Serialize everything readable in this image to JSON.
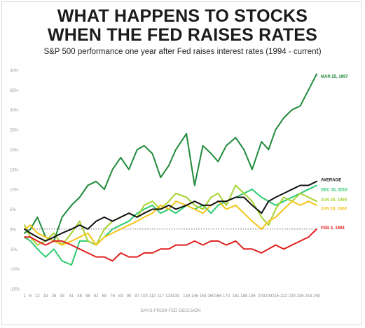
{
  "title_line1": "WHAT HAPPENS TO STOCKS",
  "title_line2": "WHEN THE FED RAISES RATES",
  "subtitle": "S&P 500 performance one year after Fed raises interest rates (1994 - current)",
  "chart_data": {
    "type": "line",
    "title": "WHAT HAPPENS TO STOCKS WHEN THE FED RAISES RATES",
    "subtitle": "S&P 500 performance one year after Fed raises interest rates (1994 - current)",
    "xlabel": "DAYS FROM FED DECISION",
    "ylabel": "",
    "xlim": [
      1,
      250
    ],
    "ylim": [
      -15,
      40
    ],
    "x_ticks": [
      1,
      6,
      12,
      19,
      26,
      33,
      41,
      48,
      55,
      62,
      69,
      76,
      83,
      90,
      97,
      103,
      110,
      117,
      124,
      130,
      139,
      146,
      153,
      160,
      166,
      173,
      181,
      188,
      195,
      203,
      209,
      215,
      222,
      229,
      236,
      243,
      250
    ],
    "y_ticks": [
      -15,
      -10,
      -5,
      0,
      5,
      10,
      15,
      20,
      25,
      30,
      35,
      40
    ],
    "y_tick_labels": [
      "-15%",
      "-10%",
      "-5%",
      "0%",
      "5%",
      "10%",
      "15%",
      "20%",
      "25%",
      "30%",
      "35%",
      "40%"
    ],
    "grid": false,
    "reference_line": 0,
    "series": [
      {
        "name": "MAR 25, 1997",
        "color": "#1f8a3a",
        "width": 2,
        "x": [
          1,
          6,
          12,
          19,
          26,
          33,
          41,
          48,
          55,
          62,
          69,
          76,
          83,
          90,
          97,
          103,
          110,
          117,
          124,
          130,
          139,
          146,
          153,
          160,
          166,
          173,
          181,
          188,
          195,
          203,
          209,
          215,
          222,
          229,
          236,
          243,
          250
        ],
        "y": [
          -1,
          0,
          3,
          -2,
          -3,
          3,
          6,
          8,
          11,
          12,
          10,
          15,
          18,
          15,
          20,
          21,
          19,
          13,
          16,
          20,
          24,
          11,
          21,
          19,
          17,
          21,
          23,
          20,
          15,
          22,
          20,
          25,
          28,
          30,
          31,
          35,
          39
        ]
      },
      {
        "name": "AVERAGE",
        "color": "#111111",
        "width": 2,
        "x": [
          1,
          6,
          12,
          19,
          26,
          33,
          41,
          48,
          55,
          62,
          69,
          76,
          83,
          90,
          97,
          103,
          110,
          117,
          124,
          130,
          139,
          146,
          153,
          160,
          166,
          173,
          181,
          188,
          195,
          203,
          209,
          215,
          222,
          229,
          236,
          243,
          250
        ],
        "y": [
          0,
          -1,
          -2,
          -3,
          -2,
          -1,
          0,
          1,
          0,
          2,
          3,
          2,
          3,
          4,
          3,
          4,
          5,
          5,
          6,
          5,
          6,
          7,
          6,
          6,
          7,
          7,
          8,
          8,
          6,
          4,
          7,
          8,
          9,
          10,
          11,
          11,
          12
        ]
      },
      {
        "name": "DEC 16, 2015",
        "color": "#2ecc71",
        "width": 2,
        "x": [
          1,
          6,
          12,
          19,
          26,
          33,
          41,
          48,
          55,
          62,
          69,
          76,
          83,
          90,
          97,
          103,
          110,
          117,
          124,
          130,
          139,
          146,
          153,
          160,
          166,
          173,
          181,
          188,
          195,
          203,
          209,
          215,
          222,
          229,
          236,
          243,
          250
        ],
        "y": [
          -2,
          -3,
          -5,
          -7,
          -5,
          -8,
          -9,
          -3,
          -3,
          -4,
          -2,
          0,
          1,
          2,
          4,
          5,
          6,
          4,
          5,
          4,
          6,
          5,
          6,
          4,
          6,
          7,
          8,
          9,
          10,
          8,
          7,
          6,
          7,
          8,
          9,
          10,
          11
        ]
      },
      {
        "name": "JUN 30, 1999",
        "color": "#a6d332",
        "width": 2,
        "x": [
          1,
          6,
          12,
          19,
          26,
          33,
          41,
          48,
          55,
          62,
          69,
          76,
          83,
          90,
          97,
          103,
          110,
          117,
          124,
          130,
          139,
          146,
          153,
          160,
          166,
          173,
          181,
          188,
          195,
          203,
          209,
          215,
          222,
          229,
          236,
          243,
          250
        ],
        "y": [
          1,
          -2,
          -4,
          -3,
          -1,
          -4,
          -1,
          2,
          -3,
          -4,
          0,
          2,
          3,
          4,
          3,
          6,
          7,
          5,
          7,
          9,
          8,
          6,
          5,
          8,
          9,
          6,
          11,
          9,
          7,
          3,
          1,
          5,
          8,
          7,
          9,
          8,
          7
        ]
      },
      {
        "name": "JUN 30, 2004",
        "color": "#f5c518",
        "width": 2,
        "x": [
          1,
          6,
          12,
          19,
          26,
          33,
          41,
          48,
          55,
          62,
          69,
          76,
          83,
          90,
          97,
          103,
          110,
          117,
          124,
          130,
          139,
          146,
          153,
          160,
          166,
          173,
          181,
          188,
          195,
          203,
          209,
          215,
          222,
          229,
          236,
          243,
          250
        ],
        "y": [
          0,
          1,
          -1,
          -2,
          -3,
          -4,
          -3,
          -2,
          -1,
          -4,
          -2,
          -1,
          0,
          1,
          2,
          3,
          4,
          6,
          5,
          7,
          6,
          5,
          4,
          6,
          7,
          5,
          6,
          4,
          2,
          0,
          2,
          3,
          5,
          7,
          6,
          7,
          6
        ]
      },
      {
        "name": "FEB 4, 1994",
        "color": "#e02020",
        "width": 2,
        "x": [
          1,
          6,
          12,
          19,
          26,
          33,
          41,
          48,
          55,
          62,
          69,
          76,
          83,
          90,
          97,
          103,
          110,
          117,
          124,
          130,
          139,
          146,
          153,
          160,
          166,
          173,
          181,
          188,
          195,
          203,
          209,
          215,
          222,
          229,
          236,
          243,
          250
        ],
        "y": [
          -2,
          -2,
          -3,
          -4,
          -3,
          -3,
          -4,
          -5,
          -6,
          -7,
          -7,
          -8,
          -6,
          -7,
          -7,
          -6,
          -6,
          -5,
          -5,
          -4,
          -4,
          -3,
          -4,
          -3,
          -3,
          -4,
          -3,
          -5,
          -5,
          -6,
          -5,
          -4,
          -5,
          -4,
          -3,
          -2,
          0
        ]
      }
    ]
  }
}
